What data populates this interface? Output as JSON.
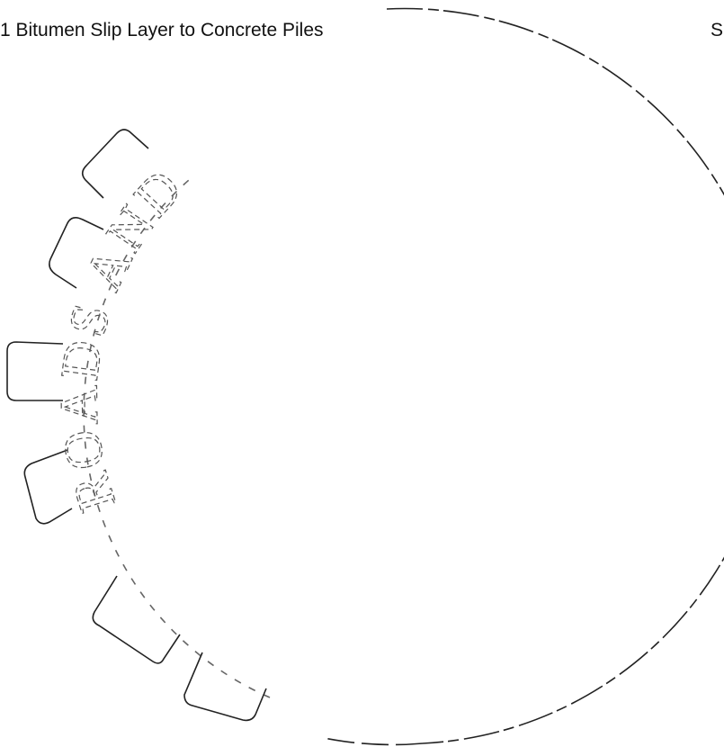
{
  "document": {
    "heading": "1 Bitumen Slip Layer to Concrete Piles",
    "margin_text": "S",
    "stamp": {
      "text": "ROADS AND"
    }
  }
}
